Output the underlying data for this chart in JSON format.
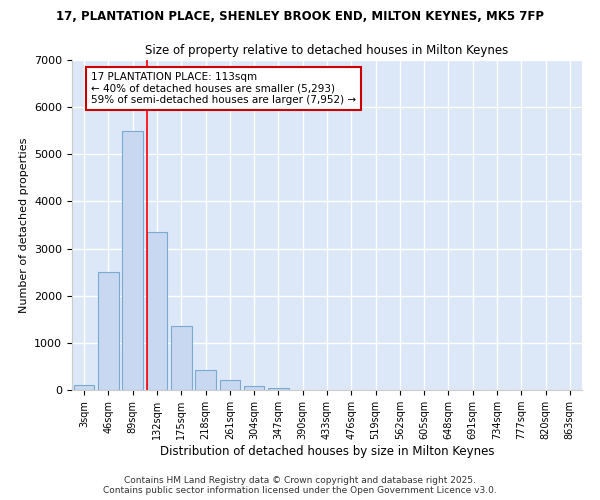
{
  "title_line1": "17, PLANTATION PLACE, SHENLEY BROOK END, MILTON KEYNES, MK5 7FP",
  "title_line2": "Size of property relative to detached houses in Milton Keynes",
  "xlabel": "Distribution of detached houses by size in Milton Keynes",
  "ylabel": "Number of detached properties",
  "bar_labels": [
    "3sqm",
    "46sqm",
    "89sqm",
    "132sqm",
    "175sqm",
    "218sqm",
    "261sqm",
    "304sqm",
    "347sqm",
    "390sqm",
    "433sqm",
    "476sqm",
    "519sqm",
    "562sqm",
    "605sqm",
    "648sqm",
    "691sqm",
    "734sqm",
    "777sqm",
    "820sqm",
    "863sqm"
  ],
  "bar_values": [
    100,
    2500,
    5500,
    3350,
    1350,
    430,
    220,
    80,
    50,
    0,
    0,
    0,
    0,
    0,
    0,
    0,
    0,
    0,
    0,
    0,
    0
  ],
  "bar_color": "#c8d8f0",
  "bar_edge_color": "#7aaad0",
  "bg_color": "#ffffff",
  "plot_bg_color": "#dce8f8",
  "grid_color": "#ffffff",
  "ylim": [
    0,
    7000
  ],
  "yticks": [
    0,
    1000,
    2000,
    3000,
    4000,
    5000,
    6000,
    7000
  ],
  "property_line_x": 2.58,
  "annotation_text": "17 PLANTATION PLACE: 113sqm\n← 40% of detached houses are smaller (5,293)\n59% of semi-detached houses are larger (7,952) →",
  "footer_line1": "Contains HM Land Registry data © Crown copyright and database right 2025.",
  "footer_line2": "Contains public sector information licensed under the Open Government Licence v3.0."
}
